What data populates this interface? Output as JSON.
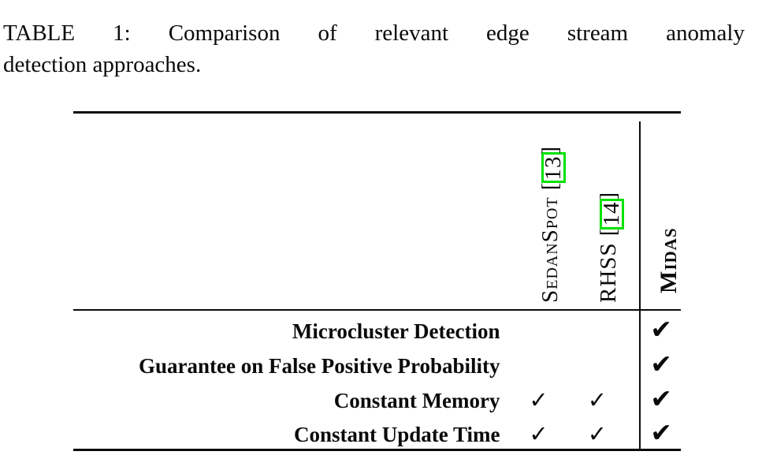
{
  "caption": {
    "line1": "TABLE 1: Comparison of relevant edge stream anomaly",
    "line2": "detection approaches."
  },
  "table": {
    "columns": [
      {
        "name": "SedanSpot",
        "cite_open": " [",
        "cite_num": "13",
        "cite_close": "]"
      },
      {
        "name": "RHSS",
        "cite_open": " [",
        "cite_num": "14",
        "cite_close": "]"
      },
      {
        "name": "Midas",
        "cite_open": "",
        "cite_num": "",
        "cite_close": ""
      }
    ],
    "rows": [
      {
        "label": "Microcluster Detection",
        "cells": [
          "",
          "",
          "✔"
        ]
      },
      {
        "label": "Guarantee on False Positive Probability",
        "cells": [
          "",
          "",
          "✔"
        ]
      },
      {
        "label": "Constant Memory",
        "cells": [
          "✓",
          "✓",
          "✔"
        ]
      },
      {
        "label": "Constant Update Time",
        "cells": [
          "✓",
          "✓",
          "✔"
        ]
      }
    ]
  },
  "colors": {
    "citation_box": "#00e100",
    "text": "#0a0a0a",
    "background": "#ffffff"
  }
}
